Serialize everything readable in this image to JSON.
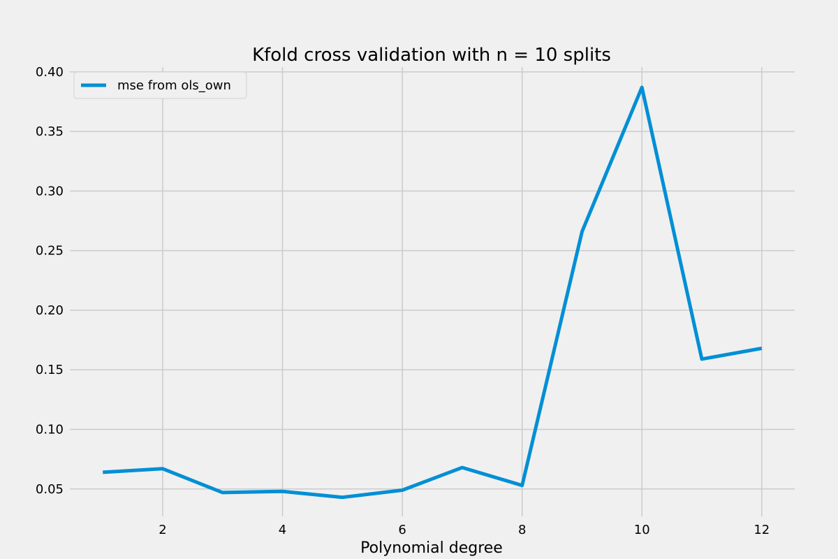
{
  "chart_data": {
    "type": "line",
    "title": "Kfold cross validation with n = 10 splits",
    "xlabel": "Polynomial degree",
    "ylabel": "",
    "xlim": [
      0.45,
      12.55
    ],
    "ylim": [
      0.027,
      0.404
    ],
    "xticks": [
      2,
      4,
      6,
      8,
      10,
      12
    ],
    "yticks": [
      0.05,
      0.1,
      0.15,
      0.2,
      0.25,
      0.3,
      0.35,
      0.4
    ],
    "ytick_labels": [
      "0.05",
      "0.10",
      "0.15",
      "0.20",
      "0.25",
      "0.30",
      "0.35",
      "0.40"
    ],
    "grid": true,
    "legend_position": "upper-left",
    "series": [
      {
        "name": "mse from ols_own",
        "color": "#008fd5",
        "x": [
          1,
          2,
          3,
          4,
          5,
          6,
          7,
          8,
          9,
          10,
          11,
          12
        ],
        "y": [
          0.064,
          0.067,
          0.047,
          0.048,
          0.043,
          0.049,
          0.068,
          0.053,
          0.266,
          0.387,
          0.159,
          0.168
        ]
      }
    ]
  }
}
